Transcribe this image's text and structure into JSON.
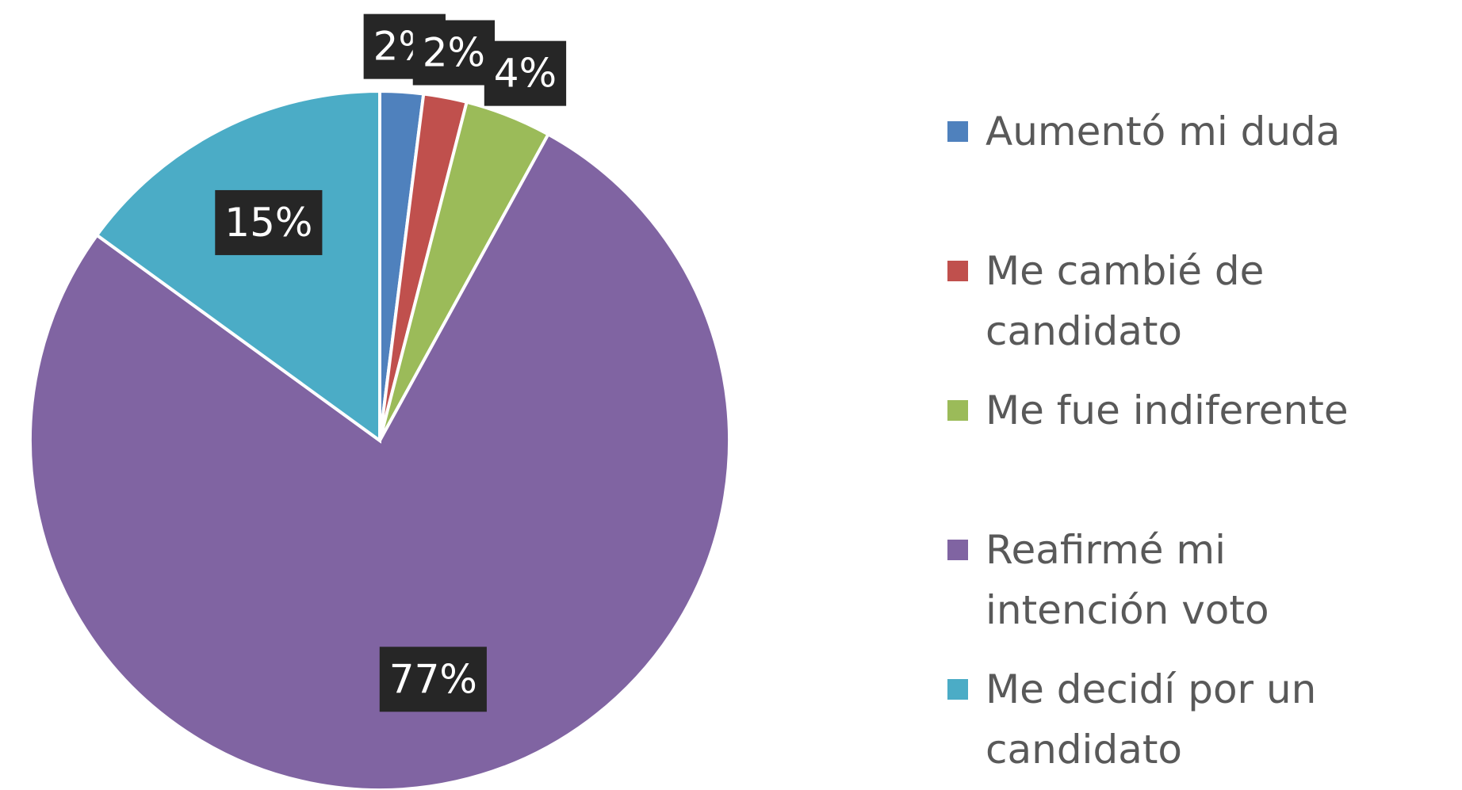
{
  "chart_data": {
    "type": "pie",
    "categories": [
      "Aumentó mi duda",
      "Me cambié de candidato",
      "Me fue indiferente",
      "Reafirmé mi intención voto",
      "Me decidí por un candidato"
    ],
    "values": [
      2,
      2,
      4,
      77,
      15
    ],
    "value_labels": [
      "2%",
      "2%",
      "4%",
      "77%",
      "15%"
    ],
    "colors": [
      "#4f81bd",
      "#c0504d",
      "#9bbb59",
      "#8064a2",
      "#4bacc6"
    ],
    "legend": "right"
  }
}
